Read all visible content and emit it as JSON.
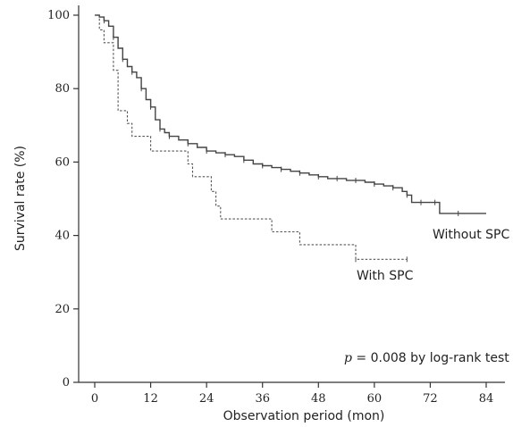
{
  "chart_data": {
    "type": "line",
    "title": "",
    "xlabel": "Observation period (mon)",
    "ylabel": "Survival rate (%)",
    "xlim": [
      0,
      84
    ],
    "ylim": [
      0,
      100
    ],
    "x_ticks": [
      0,
      12,
      24,
      36,
      48,
      60,
      72,
      84
    ],
    "y_ticks": [
      0,
      20,
      40,
      60,
      80,
      100
    ],
    "grid": false,
    "series": [
      {
        "name": "Without SPC",
        "style": "solid",
        "color": "#444444",
        "points": [
          [
            0,
            100
          ],
          [
            1,
            99.5
          ],
          [
            2,
            98.5
          ],
          [
            3,
            97
          ],
          [
            4,
            94
          ],
          [
            5,
            91
          ],
          [
            6,
            88
          ],
          [
            7,
            86
          ],
          [
            8,
            84.5
          ],
          [
            9,
            83
          ],
          [
            10,
            80
          ],
          [
            11,
            77
          ],
          [
            12,
            75
          ],
          [
            13,
            71.5
          ],
          [
            14,
            69
          ],
          [
            15,
            68
          ],
          [
            16,
            67
          ],
          [
            18,
            66
          ],
          [
            20,
            65
          ],
          [
            22,
            64
          ],
          [
            24,
            63
          ],
          [
            26,
            62.5
          ],
          [
            28,
            62
          ],
          [
            30,
            61.5
          ],
          [
            32,
            60.5
          ],
          [
            34,
            59.5
          ],
          [
            36,
            59
          ],
          [
            38,
            58.5
          ],
          [
            40,
            58
          ],
          [
            42,
            57.5
          ],
          [
            44,
            57
          ],
          [
            46,
            56.5
          ],
          [
            48,
            56
          ],
          [
            50,
            55.5
          ],
          [
            52,
            55.5
          ],
          [
            54,
            55
          ],
          [
            56,
            55
          ],
          [
            58,
            54.5
          ],
          [
            60,
            54
          ],
          [
            62,
            53.5
          ],
          [
            64,
            53
          ],
          [
            66,
            52
          ],
          [
            67,
            51
          ],
          [
            68,
            49
          ],
          [
            70,
            49
          ],
          [
            72,
            49
          ],
          [
            73,
            49
          ],
          [
            74,
            46
          ],
          [
            78,
            46
          ],
          [
            84,
            46
          ]
        ]
      },
      {
        "name": "With SPC",
        "style": "dashed",
        "color": "#555555",
        "points": [
          [
            0,
            100
          ],
          [
            1,
            96
          ],
          [
            2,
            92.5
          ],
          [
            3,
            92.5
          ],
          [
            4,
            85
          ],
          [
            5,
            74
          ],
          [
            6,
            74
          ],
          [
            7,
            70.5
          ],
          [
            8,
            67
          ],
          [
            11,
            67
          ],
          [
            12,
            63
          ],
          [
            19,
            63
          ],
          [
            20,
            59.5
          ],
          [
            21,
            56
          ],
          [
            24,
            56
          ],
          [
            25,
            52
          ],
          [
            26,
            48
          ],
          [
            27,
            44.5
          ],
          [
            37,
            44.5
          ],
          [
            38,
            41
          ],
          [
            43,
            41
          ],
          [
            44,
            37.5
          ],
          [
            55,
            37.5
          ],
          [
            56,
            33.5
          ],
          [
            67,
            33.5
          ]
        ]
      }
    ],
    "annotations": {
      "without_label": "Without SPC",
      "with_label": "With SPC",
      "pvalue_p": "p",
      "pvalue_rest": " = 0.008 by log-rank test"
    }
  }
}
